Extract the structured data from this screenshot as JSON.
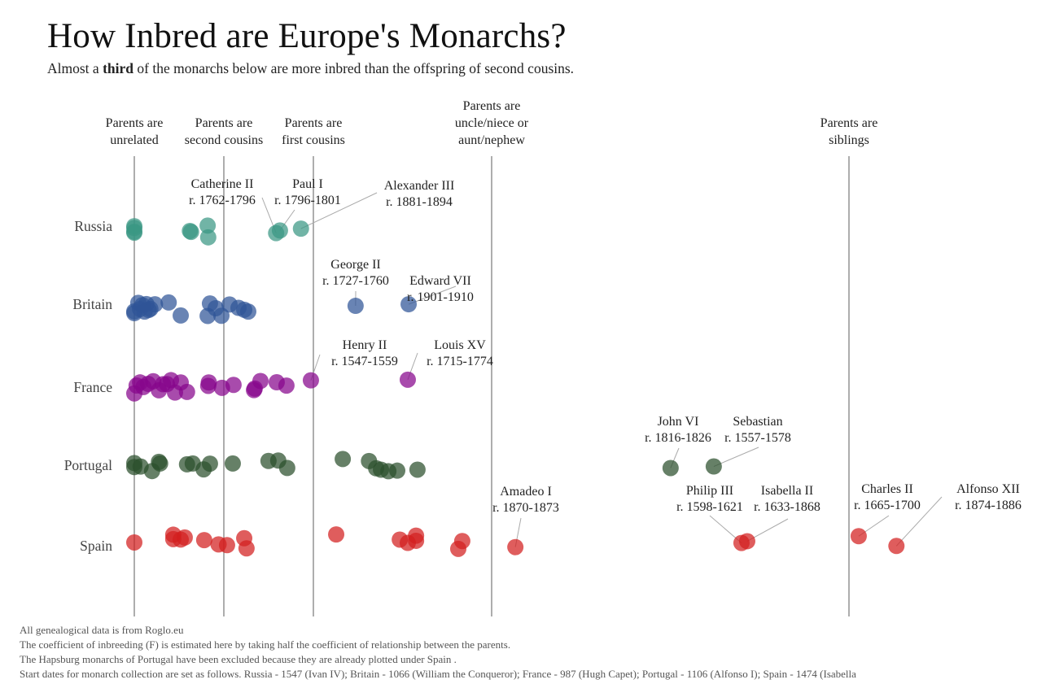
{
  "title": "How Inbred are Europe's Monarchs?",
  "subtitle": {
    "before": "Almost a ",
    "bold": "third",
    "after": " of  the monarchs below are more inbred than the offspring of  second cousins."
  },
  "chart_data": {
    "type": "scatter",
    "title": "How Inbred are Europe's Monarchs?",
    "xlabel": "",
    "ylabel": "",
    "x_quantity": "coefficient of inbreeding (F)",
    "xlim": [
      0,
      0.27
    ],
    "grid": false,
    "reference_lines": [
      {
        "value": 0,
        "label": [
          "Parents are",
          "unrelated"
        ]
      },
      {
        "value": 0.015625,
        "label": [
          "Parents are",
          "second cousins"
        ]
      },
      {
        "value": 0.0625,
        "label": [
          "Parents are",
          "first cousins"
        ]
      },
      {
        "value": 0.125,
        "label": [
          "Parents are",
          "uncle/niece or",
          "aunt/nephew"
        ]
      },
      {
        "value": 0.25,
        "label": [
          "Parents are",
          "siblings"
        ]
      }
    ],
    "categories": [
      "Russia",
      "Britain",
      "France",
      "Portugal",
      "Spain"
    ],
    "series": [
      {
        "name": "Russia",
        "color": "#3a9783",
        "values": [
          0,
          0,
          0,
          0,
          0.0097,
          0.0099,
          0.0128,
          0.0129,
          0.043,
          0.045,
          0.056
        ]
      },
      {
        "name": "Britain",
        "color": "#2f5597",
        "values": [
          0,
          0,
          0.0007,
          0.001,
          0.0014,
          0.0018,
          0.0021,
          0.0025,
          0.0028,
          0.0036,
          0.006,
          0.0081,
          0.0128,
          0.0132,
          0.0142,
          0.0152,
          0.0186,
          0.0233,
          0.0263,
          0.0284,
          0.0773,
          0.0959
        ]
      },
      {
        "name": "France",
        "color": "#86068c",
        "values": [
          0,
          0.0004,
          0.001,
          0.0016,
          0.0024,
          0.0033,
          0.0043,
          0.005,
          0.0057,
          0.0064,
          0.0071,
          0.0081,
          0.0092,
          0.0129,
          0.013,
          0.0153,
          0.0207,
          0.0314,
          0.0318,
          0.0348,
          0.0433,
          0.0484,
          0.0612,
          0.0956
        ]
      },
      {
        "name": "Portugal",
        "color": "#2b4f2d",
        "values": [
          0,
          0,
          0.0011,
          0.0031,
          0.0043,
          0.0045,
          0.0092,
          0.0102,
          0.0121,
          0.0132,
          0.0203,
          0.039,
          0.0441,
          0.0488,
          0.0728,
          0.082,
          0.0845,
          0.0862,
          0.0888,
          0.0919,
          0.099,
          0.1876,
          0.2027
        ]
      },
      {
        "name": "Spain",
        "color": "#d21f1f",
        "values": [
          0,
          0.0068,
          0.0068,
          0.0081,
          0.0088,
          0.0122,
          0.0147,
          0.0173,
          0.0263,
          0.0275,
          0.0705,
          0.0928,
          0.0956,
          0.0985,
          0.0985,
          0.1133,
          0.1147,
          0.1333,
          0.2124,
          0.2144,
          0.2534,
          0.2666
        ]
      }
    ],
    "annotations": [
      {
        "country": "Russia",
        "name": "Catherine II",
        "reign": "r. 1762-1796",
        "value": 0.043
      },
      {
        "country": "Russia",
        "name": "Paul I",
        "reign": "r. 1796-1801",
        "value": 0.045
      },
      {
        "country": "Russia",
        "name": "Alexander III",
        "reign": "r. 1881-1894",
        "value": 0.056
      },
      {
        "country": "Britain",
        "name": "George II",
        "reign": "r.  1727-1760",
        "value": 0.0773
      },
      {
        "country": "Britain",
        "name": "Edward VII",
        "reign": "r. 1901-1910",
        "value": 0.0959
      },
      {
        "country": "France",
        "name": "Henry II",
        "reign": "r. 1547-1559",
        "value": 0.0612
      },
      {
        "country": "France",
        "name": "Louis XV",
        "reign": "r. 1715-1774",
        "value": 0.0956
      },
      {
        "country": "Portugal",
        "name": "John VI",
        "reign": "r. 1816-1826",
        "value": 0.1876
      },
      {
        "country": "Portugal",
        "name": "Sebastian",
        "reign": "r. 1557-1578",
        "value": 0.2027
      },
      {
        "country": "Spain",
        "name": "Amadeo I",
        "reign": "r. 1870-1873",
        "value": 0.1333
      },
      {
        "country": "Spain",
        "name": "Philip III",
        "reign": "r. 1598-1621",
        "value": 0.2124
      },
      {
        "country": "Spain",
        "name": "Isabella II",
        "reign": "r. 1633-1868",
        "value": 0.2144
      },
      {
        "country": "Spain",
        "name": "Charles II",
        "reign": "r. 1665-1700",
        "value": 0.2534
      },
      {
        "country": "Spain",
        "name": "Alfonso XII",
        "reign": "r. 1874-1886",
        "value": 0.2666
      }
    ]
  },
  "footer": [
    "All genealogical data is from Roglo.eu",
    "The coefficient of inbreeding (F) is estimated here by taking half the coefficient of relationship between the parents.",
    "The Hapsburg monarchs of Portugal have been excluded because they are already plotted under Spain .",
    "Start dates for monarch collection are set as follows. Russia - 1547 (Ivan IV);  Britain - 1066 (William the Conqueror);  France - 987 (Hugh Capet); Portugal - 1106 (Alfonso I); Spain - 1474 (Isabella"
  ]
}
